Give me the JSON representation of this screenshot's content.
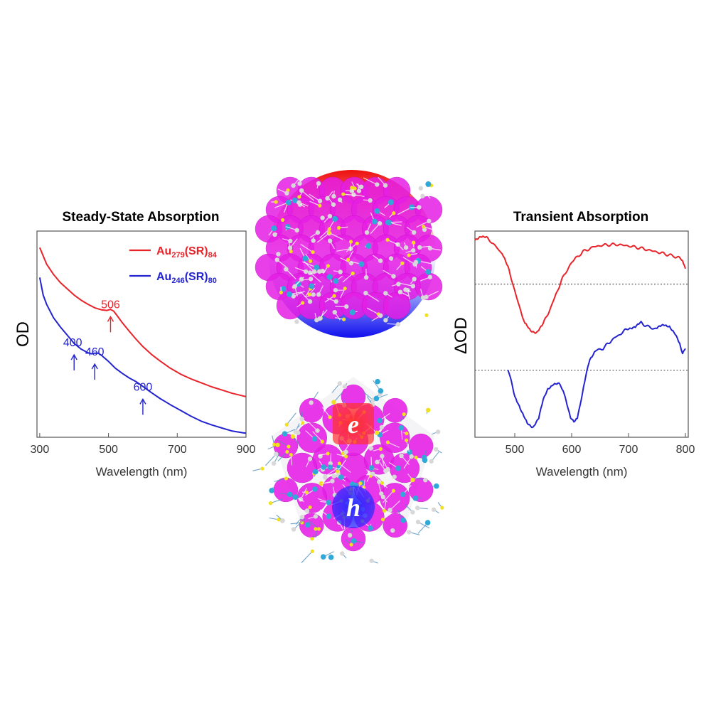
{
  "chart_data": [
    {
      "type": "line",
      "title": "Steady-State Absorption",
      "xlabel": "Wavelength (nm)",
      "ylabel": "OD",
      "xlim": [
        292,
        900
      ],
      "ylim": [
        0,
        1
      ],
      "x_ticks": [
        300,
        500,
        700,
        900
      ],
      "grid": false,
      "legend": "top-right",
      "series": [
        {
          "name": "Au279(SR)84",
          "legend_parts": [
            "Au",
            "279",
            "(SR)",
            "84"
          ],
          "color": "#e8232a",
          "points": [
            [
              300,
              0.92
            ],
            [
              320,
              0.84
            ],
            [
              340,
              0.79
            ],
            [
              360,
              0.75
            ],
            [
              380,
              0.72
            ],
            [
              400,
              0.69
            ],
            [
              420,
              0.665
            ],
            [
              440,
              0.645
            ],
            [
              460,
              0.628
            ],
            [
              480,
              0.618
            ],
            [
              495,
              0.615
            ],
            [
              506,
              0.62
            ],
            [
              515,
              0.612
            ],
            [
              525,
              0.59
            ],
            [
              540,
              0.556
            ],
            [
              560,
              0.515
            ],
            [
              580,
              0.476
            ],
            [
              600,
              0.44
            ],
            [
              625,
              0.402
            ],
            [
              650,
              0.37
            ],
            [
              680,
              0.335
            ],
            [
              710,
              0.306
            ],
            [
              740,
              0.283
            ],
            [
              770,
              0.264
            ],
            [
              800,
              0.245
            ],
            [
              830,
              0.229
            ],
            [
              860,
              0.213
            ],
            [
              890,
              0.201
            ],
            [
              900,
              0.197
            ]
          ]
        },
        {
          "name": "Au246(SR)80",
          "legend_parts": [
            "Au",
            "246",
            "(SR)",
            "80"
          ],
          "color": "#2323d0",
          "points": [
            [
              300,
              0.775
            ],
            [
              310,
              0.69
            ],
            [
              320,
              0.645
            ],
            [
              340,
              0.58
            ],
            [
              360,
              0.535
            ],
            [
              380,
              0.495
            ],
            [
              400,
              0.455
            ],
            [
              420,
              0.428
            ],
            [
              440,
              0.41
            ],
            [
              450,
              0.405
            ],
            [
              460,
              0.408
            ],
            [
              470,
              0.408
            ],
            [
              480,
              0.397
            ],
            [
              500,
              0.368
            ],
            [
              520,
              0.335
            ],
            [
              540,
              0.31
            ],
            [
              560,
              0.288
            ],
            [
              580,
              0.27
            ],
            [
              600,
              0.247
            ],
            [
              620,
              0.222
            ],
            [
              650,
              0.188
            ],
            [
              680,
              0.158
            ],
            [
              710,
              0.13
            ],
            [
              740,
              0.102
            ],
            [
              770,
              0.078
            ],
            [
              800,
              0.06
            ],
            [
              830,
              0.045
            ],
            [
              860,
              0.03
            ],
            [
              890,
              0.022
            ],
            [
              900,
              0.02
            ]
          ]
        }
      ],
      "annotations": [
        {
          "label": "506",
          "x": 506,
          "color": "#e8232a",
          "arrow_y": 0.585
        },
        {
          "label": "400",
          "x": 400,
          "color": "#2323d0",
          "arrow_y": 0.4
        },
        {
          "label": "460",
          "x": 460,
          "color": "#2323d0",
          "arrow_y": 0.355
        },
        {
          "label": "600",
          "x": 600,
          "color": "#2323d0",
          "arrow_y": 0.185
        }
      ]
    },
    {
      "type": "line",
      "title": "Transient Absorption",
      "xlabel": "Wavelength (nm)",
      "ylabel": "ΔOD",
      "xlim": [
        430,
        805
      ],
      "ylim": [
        0,
        1
      ],
      "x_ticks": [
        500,
        600,
        700,
        800
      ],
      "grid": false,
      "baselines": [
        0.743,
        0.325
      ],
      "series": [
        {
          "color": "#e8232a",
          "points": [
            [
              430,
              0.96
            ],
            [
              440,
              0.975
            ],
            [
              452,
              0.965
            ],
            [
              465,
              0.93
            ],
            [
              478,
              0.89
            ],
            [
              490,
              0.81
            ],
            [
              505,
              0.66
            ],
            [
              518,
              0.55
            ],
            [
              528,
              0.515
            ],
            [
              538,
              0.51
            ],
            [
              550,
              0.55
            ],
            [
              565,
              0.64
            ],
            [
              582,
              0.76
            ],
            [
              600,
              0.85
            ],
            [
              620,
              0.9
            ],
            [
              640,
              0.925
            ],
            [
              660,
              0.933
            ],
            [
              680,
              0.935
            ],
            [
              700,
              0.928
            ],
            [
              720,
              0.918
            ],
            [
              740,
              0.905
            ],
            [
              760,
              0.892
            ],
            [
              780,
              0.878
            ],
            [
              795,
              0.862
            ],
            [
              800,
              0.818
            ]
          ]
        },
        {
          "color": "#2323d0",
          "points": [
            [
              488,
              0.325
            ],
            [
              492,
              0.3
            ],
            [
              500,
              0.2
            ],
            [
              512,
              0.12
            ],
            [
              522,
              0.07
            ],
            [
              532,
              0.05
            ],
            [
              542,
              0.09
            ],
            [
              550,
              0.18
            ],
            [
              558,
              0.235
            ],
            [
              568,
              0.26
            ],
            [
              578,
              0.258
            ],
            [
              585,
              0.23
            ],
            [
              592,
              0.16
            ],
            [
              598,
              0.1
            ],
            [
              604,
              0.078
            ],
            [
              610,
              0.09
            ],
            [
              617,
              0.19
            ],
            [
              625,
              0.3
            ],
            [
              632,
              0.38
            ],
            [
              642,
              0.42
            ],
            [
              655,
              0.43
            ],
            [
              670,
              0.47
            ],
            [
              685,
              0.5
            ],
            [
              700,
              0.53
            ],
            [
              712,
              0.535
            ],
            [
              722,
              0.555
            ],
            [
              735,
              0.535
            ],
            [
              748,
              0.525
            ],
            [
              762,
              0.545
            ],
            [
              772,
              0.54
            ],
            [
              782,
              0.5
            ],
            [
              790,
              0.45
            ],
            [
              795,
              0.41
            ],
            [
              800,
              0.43
            ]
          ]
        }
      ]
    }
  ],
  "colors": {
    "red": "#e8232a",
    "blue": "#2323d0",
    "magenta": "#e61ee6",
    "gold_atom": "#d8d8d8",
    "sulfur": "#f0e020",
    "ligand_gold": "#30a8d8"
  },
  "structure": {
    "electron_label": "e",
    "hole_label": "h"
  }
}
